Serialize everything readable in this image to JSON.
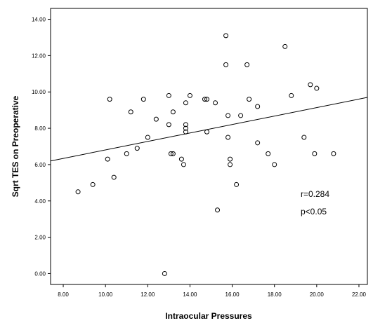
{
  "chart_data": {
    "type": "scatter",
    "xlabel": "Intraocular Pressures",
    "ylabel": "Sqrt TES on Preoperative",
    "xlim": [
      7.4,
      22.4
    ],
    "ylim": [
      -0.6,
      14.6
    ],
    "x_ticks": [
      "8.00",
      "10.00",
      "12.00",
      "14.00",
      "16.00",
      "18.00",
      "20.00",
      "22.00"
    ],
    "y_ticks": [
      "0.00",
      "2.00",
      "4.00",
      "6.00",
      "8.00",
      "10.00",
      "12.00",
      "14.00"
    ],
    "grid": false,
    "fit_line": {
      "from": [
        7.4,
        6.2
      ],
      "to": [
        22.4,
        9.7
      ]
    },
    "annotations": [
      "r=0.284",
      "p<0.05"
    ],
    "points": [
      [
        8.7,
        4.5
      ],
      [
        9.4,
        4.9
      ],
      [
        10.1,
        6.3
      ],
      [
        10.2,
        9.6
      ],
      [
        10.4,
        5.3
      ],
      [
        11.0,
        6.6
      ],
      [
        11.2,
        8.9
      ],
      [
        11.5,
        6.9
      ],
      [
        11.8,
        9.6
      ],
      [
        12.0,
        7.5
      ],
      [
        12.4,
        8.5
      ],
      [
        12.8,
        0.0
      ],
      [
        13.0,
        9.8
      ],
      [
        13.0,
        8.2
      ],
      [
        13.1,
        6.6
      ],
      [
        13.2,
        6.6
      ],
      [
        13.2,
        8.9
      ],
      [
        13.6,
        6.3
      ],
      [
        13.7,
        6.0
      ],
      [
        13.8,
        9.4
      ],
      [
        13.8,
        8.2
      ],
      [
        13.8,
        8.0
      ],
      [
        13.8,
        7.8
      ],
      [
        14.0,
        9.8
      ],
      [
        14.7,
        9.6
      ],
      [
        14.8,
        9.6
      ],
      [
        14.8,
        7.8
      ],
      [
        15.2,
        9.4
      ],
      [
        15.3,
        3.5
      ],
      [
        15.7,
        13.1
      ],
      [
        15.7,
        11.5
      ],
      [
        15.8,
        8.7
      ],
      [
        15.8,
        7.5
      ],
      [
        15.9,
        6.3
      ],
      [
        15.9,
        6.0
      ],
      [
        16.2,
        4.9
      ],
      [
        16.4,
        8.7
      ],
      [
        16.7,
        11.5
      ],
      [
        16.8,
        9.6
      ],
      [
        17.2,
        9.2
      ],
      [
        17.2,
        7.2
      ],
      [
        17.7,
        6.6
      ],
      [
        18.0,
        6.0
      ],
      [
        18.5,
        12.5
      ],
      [
        18.8,
        9.8
      ],
      [
        19.4,
        7.5
      ],
      [
        19.7,
        10.4
      ],
      [
        19.9,
        6.6
      ],
      [
        20.0,
        10.2
      ],
      [
        20.8,
        6.6
      ]
    ]
  }
}
